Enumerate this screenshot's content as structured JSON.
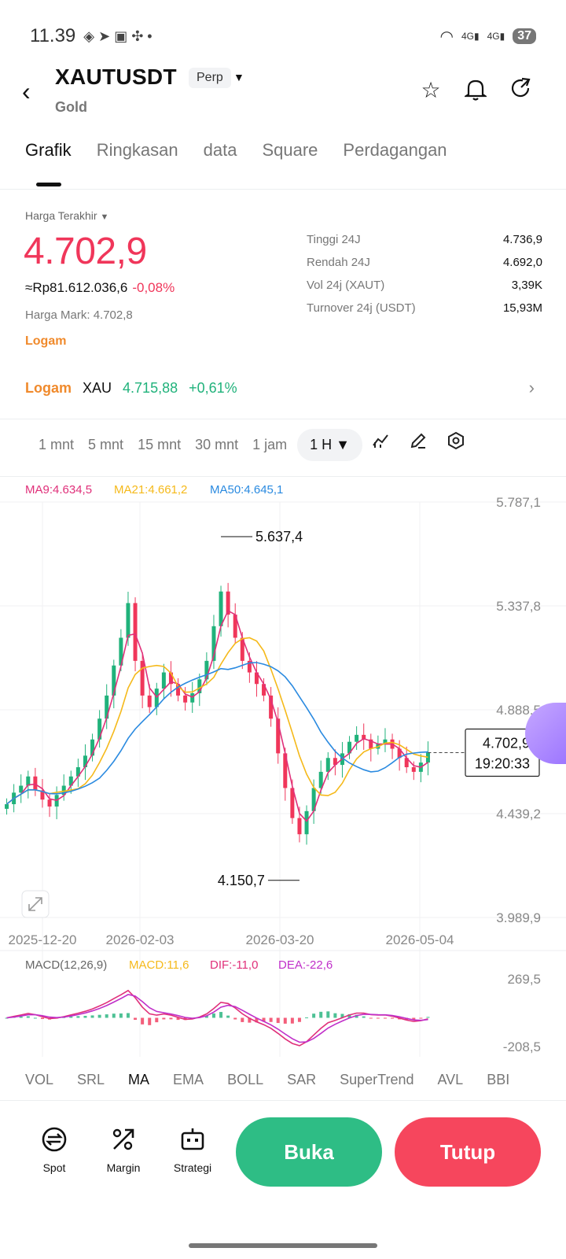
{
  "status_bar": {
    "time": "11.39",
    "battery": "37",
    "net1": "4G",
    "net2": "4G"
  },
  "header": {
    "symbol": "XAUTUSDT",
    "contract_type": "Perp",
    "subtitle": "Gold"
  },
  "tabs": [
    "Grafik",
    "Ringkasan",
    "data",
    "Square",
    "Perdagangan"
  ],
  "price_panel": {
    "label": "Harga Terakhir",
    "last_price": "4.702,9",
    "converted": "≈Rp81.612.036,6",
    "change": "-0,08%",
    "mark_price": "Harga Mark: 4.702,8",
    "tag": "Logam",
    "stats": [
      {
        "label": "Tinggi 24J",
        "value": "4.736,9"
      },
      {
        "label": "Rendah 24J",
        "value": "4.692,0"
      },
      {
        "label": "Vol 24j (XAUT)",
        "value": "3,39K"
      },
      {
        "label": "Turnover 24j (USDT)",
        "value": "15,93M"
      }
    ]
  },
  "metal_row": {
    "category": "Logam",
    "asset": "XAU",
    "price": "4.715,88",
    "change": "+0,61%"
  },
  "intervals": [
    "1 mnt",
    "5 mnt",
    "15 mnt",
    "30 mnt",
    "1 jam"
  ],
  "selected_interval": "1 H",
  "chart_data": {
    "type": "candlestick",
    "ma_legend": {
      "ma9": "MA9:4.634,5",
      "ma21": "MA21:4.661,2",
      "ma50": "MA50:4.645,1"
    },
    "y_ticks": [
      "5.787,1",
      "5.337,8",
      "4.888,5",
      "4.439,2",
      "3.989,9"
    ],
    "x_ticks": [
      "2025-12-20",
      "2026-02-03",
      "2026-03-20",
      "2026-05-04"
    ],
    "high_label": "5.637,4",
    "low_label": "4.150,7",
    "current_price_label": "4.702,9",
    "countdown_label": "19:20:33",
    "ylim": [
      3989.9,
      5787.1
    ],
    "closes": [
      4480,
      4530,
      4560,
      4600,
      4540,
      4500,
      4470,
      4520,
      4560,
      4600,
      4640,
      4690,
      4760,
      4850,
      4950,
      5080,
      5200,
      5350,
      5100,
      4950,
      4900,
      4980,
      5050,
      5000,
      4950,
      4920,
      4960,
      5020,
      5100,
      5250,
      5400,
      5300,
      5200,
      5100,
      5050,
      5000,
      4950,
      4850,
      4700,
      4550,
      4420,
      4350,
      4450,
      4550,
      4620,
      4680,
      4650,
      4700,
      4750,
      4780,
      4760,
      4720,
      4740,
      4760,
      4720,
      4680,
      4640,
      4620,
      4660,
      4702.9
    ],
    "macd": {
      "legend_title": "MACD(12,26,9)",
      "legend_macd": "MACD:11,6",
      "legend_dif": "DIF:-11,0",
      "legend_dea": "DEA:-22,6",
      "y_ticks": [
        "269,5",
        "-208,5"
      ],
      "ylim": [
        -208.5,
        269.5
      ]
    },
    "colors": {
      "up": "#20b27b",
      "down": "#f0365a",
      "ma9": "#e0307a",
      "ma21": "#f5b91a",
      "ma50": "#2a8ae0",
      "dea": "#c02fc9"
    }
  },
  "indicators": [
    "VOL",
    "SRL",
    "MA",
    "EMA",
    "BOLL",
    "SAR",
    "SuperTrend",
    "AVL",
    "BBI"
  ],
  "active_indicator": "MA",
  "bottom_nav": [
    {
      "label": "Spot",
      "icon": "spot-icon"
    },
    {
      "label": "Margin",
      "icon": "margin-icon"
    },
    {
      "label": "Strategi",
      "icon": "bot-icon"
    }
  ],
  "actions": {
    "open": "Buka",
    "close": "Tutup"
  }
}
